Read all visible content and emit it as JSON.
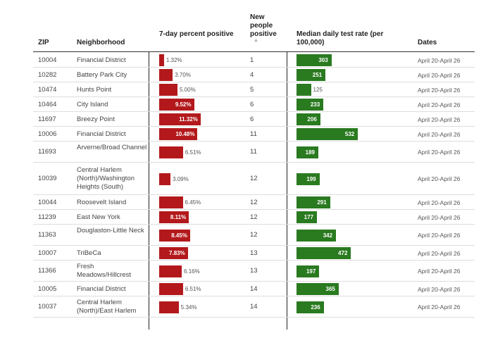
{
  "chart_data": {
    "type": "table",
    "headers": [
      "ZIP",
      "Neighborhood",
      "7-day percent positive",
      "New people positive",
      "Median daily test rate (per 100,000)",
      "Dates"
    ],
    "rows": [
      {
        "zip": "10004",
        "neighborhood": "Financial District",
        "percent_positive": 1.32,
        "percent_label": "1.32%",
        "new_positive": 1,
        "test_rate": 303,
        "dates": "April 20-April 26"
      },
      {
        "zip": "10282",
        "neighborhood": "Battery Park City",
        "percent_positive": 3.7,
        "percent_label": "3.70%",
        "new_positive": 4,
        "test_rate": 251,
        "dates": "April 20-April 26"
      },
      {
        "zip": "10474",
        "neighborhood": "Hunts Point",
        "percent_positive": 5.0,
        "percent_label": "5.00%",
        "new_positive": 5,
        "test_rate": 125,
        "dates": "April 20-April 26"
      },
      {
        "zip": "10464",
        "neighborhood": "City Island",
        "percent_positive": 9.52,
        "percent_label": "9.52%",
        "new_positive": 6,
        "test_rate": 233,
        "dates": "April 20-April 26"
      },
      {
        "zip": "11697",
        "neighborhood": "Breezy Point",
        "percent_positive": 11.32,
        "percent_label": "11.32%",
        "new_positive": 6,
        "test_rate": 206,
        "dates": "April 20-April 26"
      },
      {
        "zip": "10006",
        "neighborhood": "Financial District",
        "percent_positive": 10.48,
        "percent_label": "10.48%",
        "new_positive": 11,
        "test_rate": 532,
        "dates": "April 20-April 26"
      },
      {
        "zip": "11693",
        "neighborhood": "Arverne/Broad Channel",
        "percent_positive": 6.51,
        "percent_label": "6.51%",
        "new_positive": 11,
        "test_rate": 189,
        "dates": "April 20-April 26"
      },
      {
        "zip": "10039",
        "neighborhood": "Central Harlem (North)/Washington Heights (South)",
        "percent_positive": 3.09,
        "percent_label": "3.09%",
        "new_positive": 12,
        "test_rate": 199,
        "dates": "April 20-April 26"
      },
      {
        "zip": "10044",
        "neighborhood": "Roosevelt Island",
        "percent_positive": 6.45,
        "percent_label": "6.45%",
        "new_positive": 12,
        "test_rate": 291,
        "dates": "April 20-April 26"
      },
      {
        "zip": "11239",
        "neighborhood": "East New York",
        "percent_positive": 8.11,
        "percent_label": "8.11%",
        "new_positive": 12,
        "test_rate": 177,
        "dates": "April 20-April 26"
      },
      {
        "zip": "11363",
        "neighborhood": "Douglaston-Little Neck",
        "percent_positive": 8.45,
        "percent_label": "8.45%",
        "new_positive": 12,
        "test_rate": 342,
        "dates": "April 20-April 26"
      },
      {
        "zip": "10007",
        "neighborhood": "TriBeCa",
        "percent_positive": 7.83,
        "percent_label": "7.83%",
        "new_positive": 13,
        "test_rate": 472,
        "dates": "April 20-April 26"
      },
      {
        "zip": "11366",
        "neighborhood": "Fresh Meadows/Hillcrest",
        "percent_positive": 6.16,
        "percent_label": "6.16%",
        "new_positive": 13,
        "test_rate": 197,
        "dates": "April 20-April 26"
      },
      {
        "zip": "10005",
        "neighborhood": "Financial District",
        "percent_positive": 6.51,
        "percent_label": "6.51%",
        "new_positive": 14,
        "test_rate": 365,
        "dates": "April 20-April 26"
      },
      {
        "zip": "10037",
        "neighborhood": "Central Harlem (North)/East Harlem",
        "percent_positive": 5.34,
        "percent_label": "5.34%",
        "new_positive": 14,
        "test_rate": 236,
        "dates": "April 20-April 26"
      }
    ],
    "colors": {
      "percent_bar": "#b3191c",
      "rate_bar": "#2a7a20"
    }
  }
}
